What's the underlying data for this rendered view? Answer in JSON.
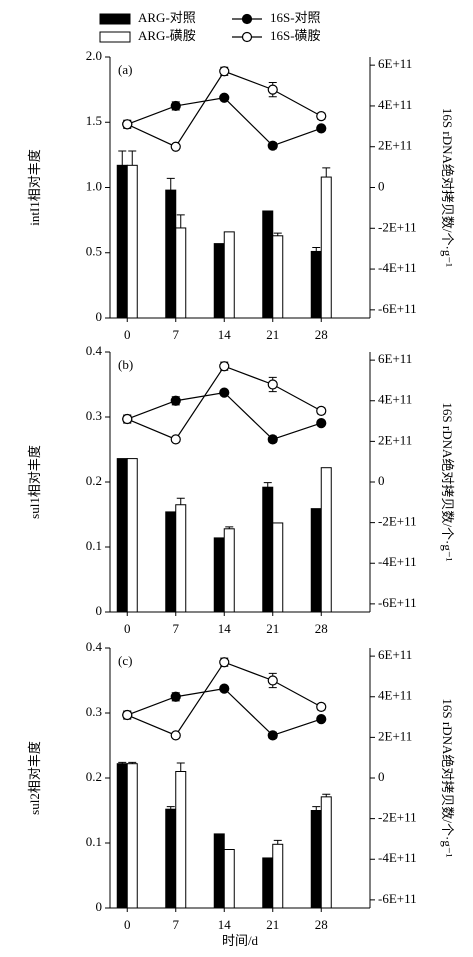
{
  "chart_data": [
    {
      "type": "bar",
      "panel_label": "(a)",
      "ylabel": "intI1相对丰度",
      "y2label": "16S rDNA绝对拷贝数/个·g⁻¹",
      "categories": [
        "0",
        "7",
        "14",
        "21",
        "28"
      ],
      "ylim": [
        0,
        2
      ],
      "yticks": [
        0,
        {
          "value": 0.5,
          "label": "0.5"
        },
        {
          "value": 1,
          "label": "1.0"
        },
        1.5,
        {
          "value": 2,
          "label": "2.0"
        }
      ],
      "y2lim": [
        -640000000000,
        640000000000
      ],
      "y2ticks": [
        {
          "value": -600000000000,
          "label": "-6E+11"
        },
        {
          "value": -400000000000,
          "label": "-4E+11"
        },
        {
          "value": -200000000000,
          "label": "-2E+11"
        },
        0,
        {
          "value": 200000000000,
          "label": "2E+11"
        },
        {
          "value": 400000000000,
          "label": "4E+11"
        },
        {
          "value": 600000000000,
          "label": "6E+11"
        }
      ],
      "series": [
        {
          "name": "ARG-对照",
          "type": "bar",
          "color": "#000000",
          "values": [
            1.17,
            0.98,
            0.57,
            0.82,
            0.51
          ],
          "errors": [
            0.11,
            0.09,
            null,
            null,
            0.03
          ]
        },
        {
          "name": "ARG-磺胺",
          "type": "bar",
          "color": "#ffffff",
          "values": [
            1.17,
            0.69,
            0.66,
            0.63,
            1.08
          ],
          "errors": [
            0.11,
            0.1,
            null,
            0.02,
            0.07
          ]
        },
        {
          "name": "16S-对照",
          "type": "line",
          "axis": "y2",
          "color": "#000000",
          "marker_fill": "#000000",
          "values": [
            310000000000,
            400000000000,
            440000000000,
            205000000000,
            290000000000
          ],
          "errors": [
            15000000000,
            20000000000,
            null,
            15000000000,
            null
          ]
        },
        {
          "name": "16S-磺胺",
          "type": "line",
          "axis": "y2",
          "color": "#000000",
          "marker_fill": "#ffffff",
          "values": [
            310000000000,
            200000000000,
            570000000000,
            480000000000,
            350000000000
          ],
          "errors": [
            20000000000,
            null,
            20000000000,
            35000000000,
            15000000000
          ]
        }
      ]
    },
    {
      "type": "bar",
      "panel_label": "(b)",
      "ylabel": "sul1相对丰度",
      "y2label": "16S rDNA绝对拷贝数/个·g⁻¹",
      "categories": [
        "0",
        "7",
        "14",
        "21",
        "28"
      ],
      "ylim": [
        0,
        0.4
      ],
      "yticks": [
        0,
        0.1,
        0.2,
        0.3,
        0.4
      ],
      "y2lim": [
        -640000000000,
        640000000000
      ],
      "y2ticks": [
        {
          "value": -600000000000,
          "label": "-6E+11"
        },
        {
          "value": -400000000000,
          "label": "-4E+11"
        },
        {
          "value": -200000000000,
          "label": "-2E+11"
        },
        0,
        {
          "value": 200000000000,
          "label": "2E+11"
        },
        {
          "value": 400000000000,
          "label": "4E+11"
        },
        {
          "value": 600000000000,
          "label": "6E+11"
        }
      ],
      "series": [
        {
          "type": "bar",
          "color": "#000000",
          "values": [
            0.236,
            0.154,
            0.114,
            0.192,
            0.159
          ],
          "errors": [
            null,
            null,
            null,
            0.007,
            null
          ]
        },
        {
          "type": "bar",
          "color": "#ffffff",
          "values": [
            0.236,
            0.165,
            0.128,
            0.137,
            0.222
          ],
          "errors": [
            null,
            0.01,
            0.003,
            null,
            null
          ]
        },
        {
          "type": "line",
          "axis": "y2",
          "color": "#000000",
          "marker_fill": "#000000",
          "values": [
            310000000000,
            400000000000,
            440000000000,
            210000000000,
            290000000000
          ],
          "errors": [
            15000000000,
            20000000000,
            null,
            15000000000,
            null
          ]
        },
        {
          "type": "line",
          "axis": "y2",
          "color": "#000000",
          "marker_fill": "#ffffff",
          "values": [
            310000000000,
            210000000000,
            570000000000,
            480000000000,
            350000000000
          ],
          "errors": [
            20000000000,
            null,
            20000000000,
            35000000000,
            15000000000
          ]
        }
      ]
    },
    {
      "type": "bar",
      "panel_label": "(c)",
      "ylabel": "sul2相对丰度",
      "y2label": "16S rDNA绝对拷贝数/个·g⁻¹",
      "xlabel": "时间/d",
      "categories": [
        "0",
        "7",
        "14",
        "21",
        "28"
      ],
      "ylim": [
        0,
        0.4
      ],
      "yticks": [
        0,
        0.1,
        0.2,
        0.3,
        0.4
      ],
      "y2lim": [
        -640000000000,
        640000000000
      ],
      "y2ticks": [
        {
          "value": -600000000000,
          "label": "-6E+11"
        },
        {
          "value": -400000000000,
          "label": "-4E+11"
        },
        {
          "value": -200000000000,
          "label": "-2E+11"
        },
        0,
        {
          "value": 200000000000,
          "label": "2E+11"
        },
        {
          "value": 400000000000,
          "label": "4E+11"
        },
        {
          "value": 600000000000,
          "label": "6E+11"
        }
      ],
      "series": [
        {
          "type": "bar",
          "color": "#000000",
          "values": [
            0.222,
            0.152,
            0.114,
            0.077,
            0.15
          ],
          "errors": [
            0.002,
            0.004,
            null,
            null,
            0.006
          ]
        },
        {
          "type": "bar",
          "color": "#ffffff",
          "values": [
            0.222,
            0.21,
            0.09,
            0.098,
            0.171
          ],
          "errors": [
            0.002,
            0.013,
            null,
            0.006,
            0.004
          ]
        },
        {
          "type": "line",
          "axis": "y2",
          "color": "#000000",
          "marker_fill": "#000000",
          "values": [
            310000000000,
            400000000000,
            440000000000,
            210000000000,
            290000000000
          ],
          "errors": [
            15000000000,
            20000000000,
            null,
            15000000000,
            null
          ]
        },
        {
          "type": "line",
          "axis": "y2",
          "color": "#000000",
          "marker_fill": "#ffffff",
          "values": [
            310000000000,
            210000000000,
            570000000000,
            480000000000,
            350000000000
          ],
          "errors": [
            20000000000,
            null,
            20000000000,
            35000000000,
            15000000000
          ]
        }
      ]
    }
  ]
}
